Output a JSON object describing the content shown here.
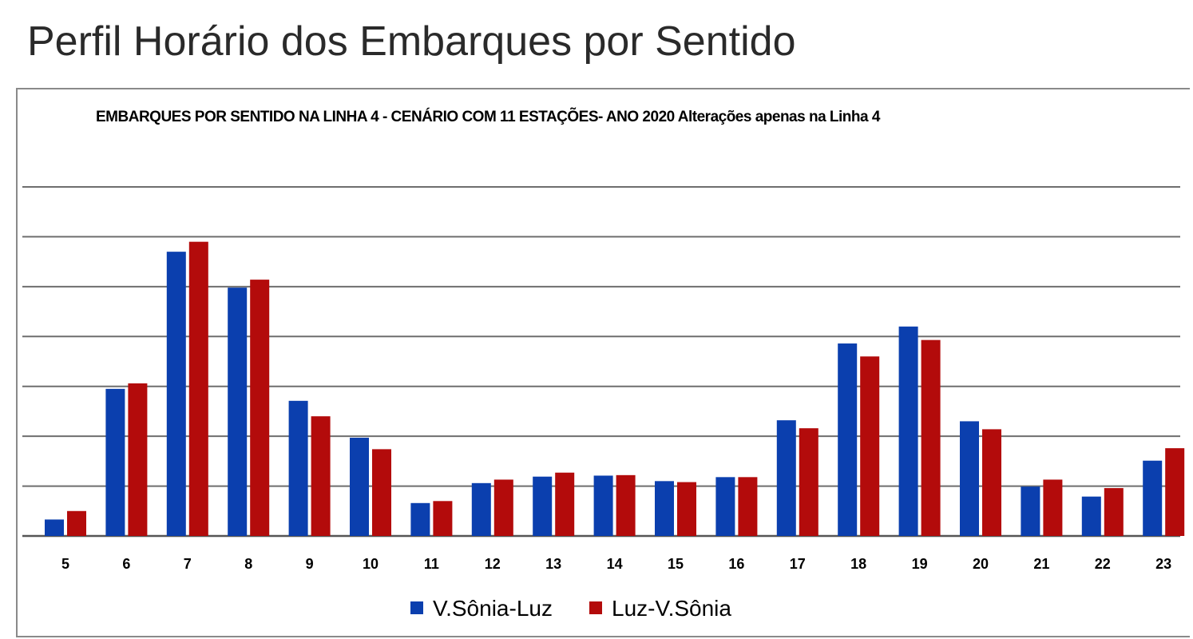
{
  "page": {
    "title": "Perfil Horário dos Embarques por Sentido"
  },
  "chart_data": {
    "type": "bar",
    "title": "EMBARQUES POR SENTIDO NA LINHA 4 -  CENÁRIO COM 11 ESTAÇÕES- ANO 2020 Alterações apenas na Linha 4",
    "xlabel": "",
    "ylabel": "",
    "categories": [
      "5",
      "6",
      "7",
      "8",
      "9",
      "10",
      "11",
      "12",
      "13",
      "14",
      "15",
      "16",
      "17",
      "18",
      "19",
      "20",
      "21",
      "22",
      "23"
    ],
    "ylim": [
      0,
      7
    ],
    "grid": true,
    "legend_position": "bottom",
    "series": [
      {
        "name": "V.Sônia-Luz",
        "color": "#0b3fae",
        "values": [
          0.33,
          2.95,
          5.7,
          4.98,
          2.71,
          1.97,
          0.66,
          1.06,
          1.19,
          1.21,
          1.1,
          1.18,
          2.32,
          3.86,
          4.2,
          2.3,
          0.99,
          0.79,
          1.51
        ]
      },
      {
        "name": "Luz-V.Sônia",
        "color": "#b30b0b",
        "values": [
          0.5,
          3.06,
          5.9,
          5.14,
          2.4,
          1.74,
          0.7,
          1.13,
          1.27,
          1.22,
          1.08,
          1.18,
          2.16,
          3.6,
          3.93,
          2.14,
          1.13,
          0.96,
          1.76
        ]
      }
    ]
  }
}
